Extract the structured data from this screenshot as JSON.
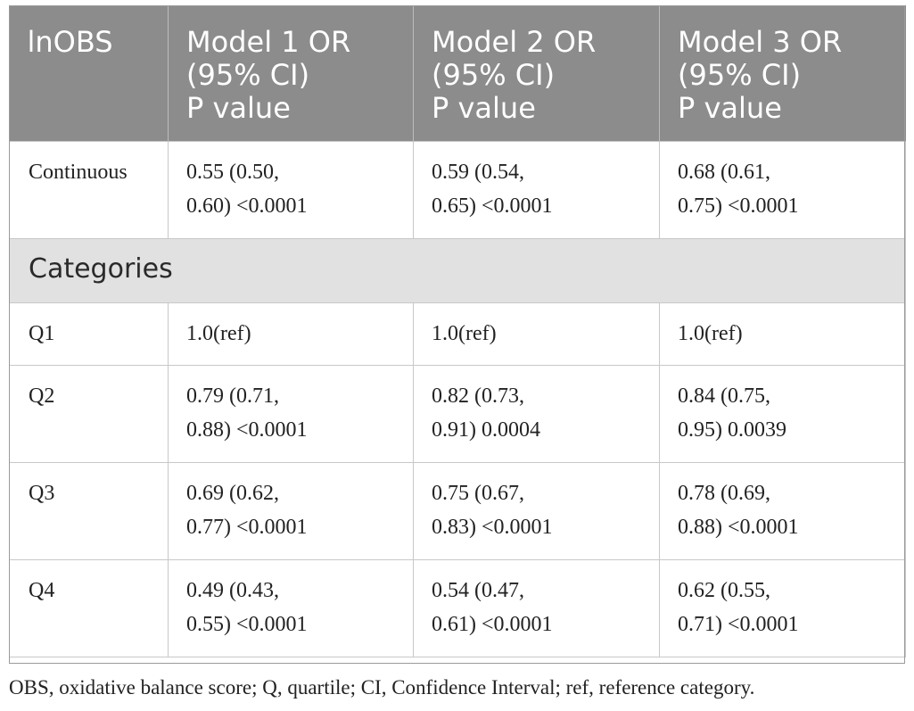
{
  "table": {
    "headers": [
      {
        "lines": [
          "lnOBS"
        ]
      },
      {
        "lines": [
          "Model 1 OR",
          "(95% CI)",
          "P value"
        ]
      },
      {
        "lines": [
          "Model 2 OR",
          "(95% CI)",
          "P value"
        ]
      },
      {
        "lines": [
          "Model 3 OR",
          "(95% CI)",
          "P value"
        ]
      }
    ],
    "continuous_row": {
      "label": "Continuous",
      "cells": [
        [
          "0.55 (0.50,",
          "0.60) <0.0001"
        ],
        [
          "0.59 (0.54,",
          "0.65) <0.0001"
        ],
        [
          "0.68 (0.61,",
          "0.75) <0.0001"
        ]
      ]
    },
    "section_label": "Categories",
    "quartile_rows": [
      {
        "label": "Q1",
        "cells": [
          [
            "1.0(ref)"
          ],
          [
            "1.0(ref)"
          ],
          [
            "1.0(ref)"
          ]
        ]
      },
      {
        "label": "Q2",
        "cells": [
          [
            "0.79 (0.71,",
            "0.88) <0.0001"
          ],
          [
            "0.82 (0.73,",
            "0.91) 0.0004"
          ],
          [
            "0.84 (0.75,",
            "0.95) 0.0039"
          ]
        ]
      },
      {
        "label": "Q3",
        "cells": [
          [
            "0.69 (0.62,",
            "0.77) <0.0001"
          ],
          [
            "0.75 (0.67,",
            "0.83) <0.0001"
          ],
          [
            "0.78 (0.69,",
            "0.88) <0.0001"
          ]
        ]
      },
      {
        "label": "Q4",
        "cells": [
          [
            "0.49 (0.43,",
            "0.55) <0.0001"
          ],
          [
            "0.54 (0.47,",
            "0.61) <0.0001"
          ],
          [
            "0.62 (0.55,",
            "0.71) <0.0001"
          ]
        ]
      }
    ]
  },
  "footnote": "OBS, oxidative balance score; Q, quartile; CI, Confidence Interval; ref, reference category.",
  "colors": {
    "header_bg": "#8c8c8c",
    "header_text": "#ffffff",
    "section_bg": "#e1e1e1",
    "grid_line": "#c8c8c8"
  }
}
